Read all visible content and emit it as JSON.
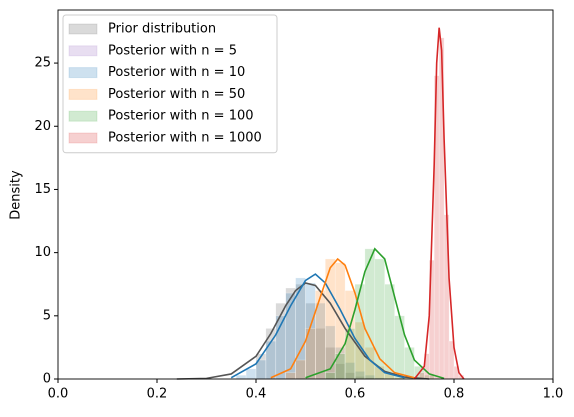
{
  "chart_data": {
    "type": "hist_kde",
    "ylabel": "Density",
    "xlim": [
      0,
      1
    ],
    "ylim": [
      0,
      29.2
    ],
    "xticks": [
      {
        "value": 0,
        "label": "0.0"
      },
      {
        "value": 0.2,
        "label": "0.2"
      },
      {
        "value": 0.4,
        "label": "0.4"
      },
      {
        "value": 0.6,
        "label": "0.6"
      },
      {
        "value": 0.8,
        "label": "0.8"
      },
      {
        "value": 1,
        "label": "1.0"
      }
    ],
    "yticks": [
      0,
      5,
      10,
      15,
      20,
      25
    ],
    "legend": "upper left",
    "series": [
      {
        "name": "Prior distribution",
        "color": "#555555",
        "bins": [
          0.4,
          0.42,
          0.44,
          0.46,
          0.48,
          0.5,
          0.52,
          0.54,
          0.56,
          0.58,
          0.6,
          0.62,
          0.64,
          0.66
        ],
        "counts": [
          2,
          4,
          6,
          7.2,
          7.5,
          6,
          4,
          2.5,
          1.2,
          0.5,
          0.2,
          0.1,
          0.05
        ],
        "kde_x": [
          0.24,
          0.3,
          0.35,
          0.4,
          0.43,
          0.46,
          0.48,
          0.5,
          0.52,
          0.55,
          0.58,
          0.62,
          0.66,
          0.7,
          0.75
        ],
        "kde_y": [
          0,
          0.05,
          0.4,
          1.8,
          3.6,
          5.8,
          7.0,
          7.6,
          7.4,
          6.0,
          4.0,
          1.8,
          0.6,
          0.15,
          0
        ]
      },
      {
        "name": "Posterior with n = 5",
        "color": "#9467bd"
      },
      {
        "name": "Posterior with n = 10",
        "color": "#1f77b4",
        "bins": [
          0.36,
          0.38,
          0.4,
          0.42,
          0.44,
          0.46,
          0.48,
          0.5,
          0.52,
          0.54,
          0.56,
          0.58,
          0.6,
          0.62,
          0.64,
          0.66,
          0.68
        ],
        "counts": [
          0.3,
          0.8,
          1.5,
          3.0,
          5.0,
          6.8,
          8.0,
          7.6,
          6.0,
          4.2,
          2.5,
          1.3,
          0.6,
          0.3,
          0.1,
          0.05
        ],
        "kde_x": [
          0.35,
          0.4,
          0.44,
          0.47,
          0.5,
          0.52,
          0.54,
          0.57,
          0.6,
          0.63,
          0.66,
          0.7
        ],
        "kde_y": [
          0.1,
          1.2,
          3.5,
          5.8,
          7.8,
          8.3,
          7.6,
          5.5,
          3.2,
          1.5,
          0.5,
          0.1
        ]
      },
      {
        "name": "Posterior with n = 50",
        "color": "#ff7f0e",
        "bins": [
          0.46,
          0.48,
          0.5,
          0.52,
          0.54,
          0.56,
          0.58,
          0.6,
          0.62,
          0.64,
          0.66,
          0.68,
          0.7
        ],
        "counts": [
          0.5,
          1.5,
          4,
          7,
          9.5,
          9.2,
          7,
          4.5,
          2.5,
          1,
          0.4,
          0.1
        ],
        "kde_x": [
          0.43,
          0.47,
          0.5,
          0.53,
          0.55,
          0.565,
          0.58,
          0.6,
          0.62,
          0.65,
          0.68,
          0.72
        ],
        "kde_y": [
          0.1,
          0.8,
          3.0,
          6.5,
          8.8,
          9.5,
          9.0,
          6.8,
          4.0,
          1.6,
          0.5,
          0.1
        ]
      },
      {
        "name": "Posterior with n = 100",
        "color": "#2ca02c",
        "bins": [
          0.54,
          0.56,
          0.58,
          0.6,
          0.62,
          0.64,
          0.66,
          0.68,
          0.7,
          0.72,
          0.74,
          0.76
        ],
        "counts": [
          0.5,
          2,
          4,
          7.5,
          10.3,
          9.5,
          7.5,
          5,
          2.5,
          1,
          0.3
        ],
        "kde_x": [
          0.5,
          0.55,
          0.58,
          0.6,
          0.62,
          0.64,
          0.66,
          0.68,
          0.7,
          0.72,
          0.75,
          0.78
        ],
        "kde_y": [
          0.1,
          0.8,
          2.8,
          5.5,
          8.5,
          10.3,
          9.5,
          6.5,
          3.5,
          1.5,
          0.4,
          0.05
        ]
      },
      {
        "name": "Posterior with n = 1000",
        "color": "#d62728",
        "bins": [
          0.73,
          0.74,
          0.75,
          0.76,
          0.77,
          0.78,
          0.79,
          0.8,
          0.81,
          0.82
        ],
        "counts": [
          0.5,
          2,
          9.4,
          24,
          27,
          13,
          3,
          1,
          0.3
        ],
        "kde_x": [
          0.72,
          0.74,
          0.75,
          0.76,
          0.765,
          0.77,
          0.775,
          0.78,
          0.79,
          0.8,
          0.81,
          0.82
        ],
        "kde_y": [
          0,
          1.0,
          5.0,
          17,
          25,
          27.8,
          26,
          19,
          8,
          2.5,
          0.5,
          0
        ]
      }
    ]
  }
}
